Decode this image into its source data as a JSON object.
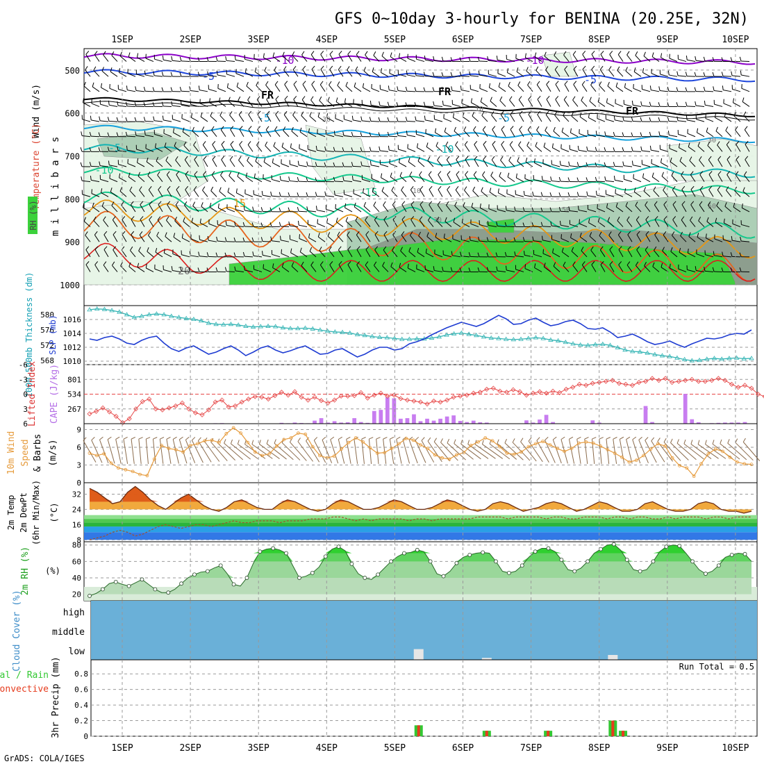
{
  "title": "GFS 0~10day 3-hourly for BENINA (20.25E, 32N)",
  "credit": "GrADS: COLA/IGES",
  "colors": {
    "wind_dark": "#8a00c8",
    "wind_blue": "#1e46dc",
    "wind_cyan": "#14a0dc",
    "freeze": "#000000",
    "teal": "#14b4b4",
    "green_line": "#14c88c",
    "orange": "#e69614",
    "dark_orange": "#e6641e",
    "red": "#dc1e1e",
    "rh_light": "#e6f5e6",
    "rh_mid": "#aacdb4",
    "rh_dark": "#8c9c8c",
    "rh_green": "#3cd23c",
    "slp_line": "#1e3cd2",
    "thick_line": "#32b4b4",
    "cape_bar": "#c87df0",
    "li_line": "#e64646",
    "wind10": "#e69b3c",
    "cloud_low": "#6ab0d8",
    "precip_total": "#32c832",
    "precip_conv": "#e63c1e",
    "temp_fill": "#f0a028",
    "temp_dark": "#dc5014",
    "dew_green": "#50c850",
    "dew_blue": "#3278e6",
    "rh2m": "#1ed21e"
  },
  "chart_data": [
    {
      "type": "heatmap",
      "name": "upper_air_cross_section",
      "title": "RH (%), Temperature (°C), Wind (m/s)",
      "ylabel": "m i l l i b a r s",
      "yaxis_label_rh": "RH (%)",
      "yaxis_label_temp": "Temperature (°C)",
      "yaxis_label_wind": "Wind (m/s)",
      "x_ticks": [
        "1SEP",
        "2SEP",
        "3SEP",
        "4SEP",
        "5SEP",
        "6SEP",
        "7SEP",
        "8SEP",
        "9SEP",
        "10SEP"
      ],
      "y_ticks": [
        "500",
        "600",
        "700",
        "800",
        "900",
        "1000"
      ],
      "ylim": [
        450,
        1000
      ],
      "contour_labels": [
        "-10",
        "-10",
        "-5",
        "-5",
        "-5",
        "FR",
        "FR",
        "FR",
        "-5",
        "-5",
        "-10",
        "-10",
        "-15",
        "15",
        "20",
        "10",
        "30",
        "30",
        "50",
        "50",
        "10",
        "30"
      ]
    },
    {
      "type": "line",
      "name": "slp_thickness",
      "ylabel_left": "1000-500mb Thickness (dm)",
      "ylabel_right": "SLP (mb)",
      "thickness_ticks": [
        "580",
        "576",
        "572",
        "568"
      ],
      "slp_ticks": [
        "1016",
        "1014",
        "1012",
        "1010"
      ],
      "thickness_ylim": [
        567.5,
        582
      ],
      "slp_ylim": [
        1009.8,
        1017.8
      ],
      "slp": [
        1013.2,
        1013.0,
        1013.4,
        1013.6,
        1013.2,
        1012.6,
        1012.4,
        1013.0,
        1013.4,
        1013.6,
        1012.6,
        1011.8,
        1011.4,
        1011.9,
        1012.2,
        1011.6,
        1011.0,
        1011.3,
        1011.8,
        1012.2,
        1011.6,
        1010.8,
        1011.3,
        1011.9,
        1012.2,
        1011.6,
        1011.2,
        1011.5,
        1011.9,
        1012.2,
        1011.6,
        1011.0,
        1011.1,
        1011.6,
        1011.8,
        1011.2,
        1010.6,
        1011.0,
        1011.6,
        1012.0,
        1012.0,
        1011.6,
        1011.8,
        1012.5,
        1012.8,
        1013.2,
        1013.8,
        1014.3,
        1014.8,
        1015.2,
        1015.6,
        1015.3,
        1015.0,
        1015.4,
        1016.0,
        1016.6,
        1016.1,
        1015.3,
        1015.4,
        1015.9,
        1016.2,
        1015.6,
        1015.1,
        1015.3,
        1015.7,
        1015.9,
        1015.4,
        1014.7,
        1014.6,
        1014.8,
        1014.2,
        1013.4,
        1013.6,
        1013.9,
        1013.4,
        1012.8,
        1012.4,
        1012.6,
        1012.9,
        1012.4,
        1012.0,
        1012.5,
        1012.9,
        1013.3,
        1013.2,
        1013.4,
        1013.8,
        1014.0,
        1013.9,
        1014.5
      ],
      "thickness": [
        581.3,
        581.5,
        581.4,
        581.1,
        580.7,
        580.0,
        579.3,
        579.6,
        580.0,
        580.2,
        580.0,
        579.6,
        579.3,
        579.0,
        578.8,
        578.4,
        577.8,
        577.5,
        577.4,
        577.5,
        577.3,
        577.0,
        576.8,
        576.9,
        577.0,
        576.9,
        576.6,
        576.4,
        576.4,
        576.5,
        576.3,
        576.0,
        575.7,
        575.5,
        575.4,
        575.2,
        574.8,
        574.6,
        574.3,
        574.1,
        574.0,
        573.8,
        573.6,
        573.6,
        573.7,
        573.7,
        573.9,
        574.2,
        574.7,
        575.0,
        575.2,
        574.9,
        574.6,
        574.2,
        573.9,
        573.8,
        573.6,
        573.5,
        573.6,
        573.8,
        574.0,
        573.8,
        573.4,
        573.2,
        572.8,
        572.4,
        572.1,
        572.0,
        572.2,
        572.3,
        572.0,
        571.4,
        570.8,
        570.4,
        570.3,
        570.0,
        569.6,
        569.3,
        569.1,
        568.7,
        568.3,
        568.0,
        568.1,
        568.4,
        568.6,
        568.4,
        568.6,
        568.7,
        568.5,
        568.6
      ]
    },
    {
      "type": "bar",
      "name": "cape_lifted_index",
      "ylabel_left": "Lifted Index",
      "ylabel_right": "CAPE (J/kg)",
      "li_ticks": [
        "-6",
        "-3",
        "0",
        "3",
        "6"
      ],
      "cape_ticks": [
        "801",
        "534",
        "267"
      ],
      "cape_ylim": [
        0,
        1070
      ],
      "li_ylim": [
        6,
        -6
      ],
      "cape": [
        0,
        0,
        0,
        0,
        0,
        0,
        0,
        0,
        0,
        0,
        0,
        0,
        0,
        0,
        0,
        0,
        0,
        0,
        0,
        8,
        10,
        5,
        5,
        0,
        0,
        0,
        0,
        0,
        0,
        15,
        8,
        20,
        12,
        8,
        55,
        100,
        20,
        45,
        20,
        25,
        100,
        30,
        15,
        230,
        250,
        480,
        460,
        90,
        100,
        170,
        45,
        90,
        55,
        90,
        130,
        150,
        50,
        30,
        55,
        25,
        20,
        0,
        0,
        0,
        0,
        0,
        60,
        20,
        75,
        160,
        30,
        0,
        0,
        0,
        0,
        0,
        60,
        20,
        5,
        0,
        0,
        0,
        0,
        0,
        320,
        30,
        0,
        0,
        0,
        0,
        540,
        80,
        25,
        0,
        10,
        15,
        20,
        20,
        20,
        30,
        0
      ],
      "li": [
        4.0,
        3.5,
        2.8,
        3.6,
        4.5,
        5.8,
        5.0,
        3.0,
        1.5,
        1.0,
        3.0,
        3.2,
        2.8,
        2.4,
        1.8,
        3.0,
        3.8,
        4.2,
        3.2,
        1.6,
        1.2,
        2.6,
        2.4,
        1.6,
        1.0,
        0.5,
        0.6,
        1.0,
        0.3,
        -0.4,
        0.2,
        -0.5,
        0.6,
        1.2,
        0.6,
        1.3,
        1.8,
        1.2,
        0.4,
        0.4,
        0.3,
        -0.3,
        0.8,
        0.2,
        -0.2,
        0.4,
        0.2,
        0.9,
        1.2,
        1.4,
        1.6,
        2.0,
        1.4,
        1.6,
        1.2,
        0.6,
        0.4,
        0.2,
        -0.2,
        -0.4,
        -1.0,
        -1.2,
        -0.6,
        -0.4,
        -0.9,
        -0.5,
        0.2,
        -0.2,
        -0.5,
        -0.2,
        -0.6,
        -0.3,
        -1.0,
        -1.4,
        -2.0,
        -1.8,
        -2.2,
        -2.4,
        -2.6,
        -2.8,
        -2.2,
        -2.0,
        -1.8,
        -2.4,
        -2.6,
        -3.2,
        -2.8,
        -3.2,
        -2.4,
        -2.6,
        -2.8,
        -3.0,
        -2.6,
        -2.6,
        -2.8,
        -3.2,
        -2.8,
        -2.0,
        -1.4,
        -1.8,
        -1.2,
        0.0,
        0.5
      ]
    },
    {
      "type": "line",
      "name": "wind_10m",
      "ylabel": "10m Wind Speed & Barbs (m/s)",
      "ylabel_parts": [
        "10m Wind",
        "Speed",
        "& Barbs",
        "(m/s)"
      ],
      "ticks": [
        "9",
        "6",
        "3",
        "0"
      ],
      "ylim": [
        0,
        10
      ],
      "values": [
        5.0,
        4.6,
        4.9,
        3.3,
        2.5,
        2.2,
        1.9,
        1.4,
        1.2,
        4.0,
        6.3,
        5.8,
        5.6,
        5.2,
        6.3,
        6.6,
        7.1,
        7.2,
        6.8,
        8.3,
        9.3,
        8.4,
        6.8,
        5.2,
        4.6,
        4.9,
        6.2,
        7.3,
        7.6,
        8.4,
        8.2,
        6.1,
        4.6,
        4.2,
        4.5,
        5.7,
        6.8,
        7.6,
        6.9,
        5.9,
        5.0,
        5.1,
        5.8,
        6.6,
        7.5,
        7.2,
        6.4,
        5.8,
        4.7,
        4.2,
        4.0,
        4.7,
        5.1,
        6.3,
        6.9,
        7.6,
        7.1,
        6.1,
        5.0,
        4.8,
        5.2,
        6.1,
        6.6,
        7.0,
        6.4,
        5.8,
        5.3,
        5.8,
        6.7,
        6.9,
        6.7,
        6.2,
        5.6,
        5.0,
        4.3,
        3.5,
        3.8,
        4.6,
        5.7,
        6.6,
        6.2,
        4.2,
        2.9,
        2.5,
        1.1,
        3.2,
        4.9,
        5.7,
        5.3,
        4.3,
        3.5,
        3.2,
        3.1
      ]
    },
    {
      "type": "area",
      "name": "temp_2m",
      "ylabel": "2m Temp 2m DewPt (6hr Min/Max) (°C)",
      "ylabel_parts": [
        "2m Temp",
        "2m DewPt",
        "(6hr Min/Max)",
        "(°C)"
      ],
      "ticks": [
        "32",
        "24",
        "16",
        "8"
      ],
      "ylim": [
        7,
        38
      ],
      "temp": [
        35,
        33,
        30,
        27,
        28,
        33,
        36,
        33,
        29,
        26,
        24,
        27,
        30,
        32,
        29,
        26,
        24,
        23,
        25,
        28,
        29,
        27,
        25,
        24,
        24,
        27,
        29,
        28,
        26,
        24,
        23,
        24,
        27,
        29,
        28,
        26,
        24,
        24,
        25,
        27,
        29,
        28,
        26,
        24,
        24,
        25,
        27,
        29,
        28,
        26,
        24,
        23,
        24,
        27,
        28,
        27,
        25,
        23,
        24,
        25,
        27,
        28,
        27,
        25,
        23,
        24,
        26,
        28,
        27,
        25,
        23,
        23,
        24,
        27,
        28,
        26,
        24,
        23,
        23,
        24,
        27,
        28,
        27,
        24,
        23,
        23,
        22,
        23
      ],
      "dewpt": [
        8,
        9,
        10,
        12,
        13,
        12,
        10,
        11,
        13,
        15,
        16,
        15,
        14,
        15,
        16,
        16,
        15,
        16,
        17,
        18,
        17,
        17,
        18,
        18,
        18,
        17,
        18,
        18,
        18,
        19,
        19,
        19,
        20,
        20,
        19,
        18,
        19,
        18,
        19,
        19,
        19,
        19,
        18,
        19,
        19,
        18,
        19,
        19,
        19,
        19,
        19,
        20,
        20,
        20,
        20,
        19,
        20,
        20,
        20,
        20,
        19,
        20,
        20,
        19,
        19,
        20,
        20,
        20,
        19,
        20,
        20,
        19,
        20,
        20,
        19,
        19,
        20,
        19,
        20,
        20,
        20,
        19,
        20,
        20,
        19,
        20,
        20,
        20
      ]
    },
    {
      "type": "area",
      "name": "rh_2m",
      "ylabel": "2m RH (%)",
      "ticks": [
        "80",
        "60",
        "40",
        "20"
      ],
      "ylim": [
        12,
        84
      ],
      "values": [
        18,
        21,
        26,
        33,
        35,
        32,
        30,
        34,
        38,
        32,
        26,
        22,
        22,
        26,
        33,
        40,
        44,
        47,
        48,
        52,
        55,
        45,
        32,
        30,
        40,
        58,
        72,
        75,
        76,
        74,
        70,
        55,
        40,
        42,
        46,
        53,
        66,
        75,
        78,
        73,
        57,
        45,
        40,
        38,
        44,
        52,
        60,
        66,
        70,
        71,
        74,
        72,
        60,
        45,
        42,
        48,
        58,
        65,
        68,
        70,
        71,
        70,
        60,
        48,
        46,
        48,
        55,
        65,
        72,
        76,
        76,
        72,
        62,
        50,
        48,
        52,
        60,
        70,
        75,
        80,
        81,
        74,
        62,
        50,
        48,
        50,
        60,
        72,
        78,
        80,
        79,
        70,
        60,
        50,
        45,
        48,
        55,
        65,
        68,
        70,
        69,
        60
      ]
    },
    {
      "type": "bar",
      "name": "cloud_cover",
      "ylabel": "Cloud Cover (%)",
      "levels": [
        "high",
        "middle",
        "low"
      ],
      "low_cloud_notes": [
        {
          "day": 5.35,
          "low_pct": 55
        },
        {
          "day": 6.35,
          "low_pct": 10
        },
        {
          "day": 8.2,
          "low_pct": 25
        }
      ]
    },
    {
      "type": "bar",
      "name": "precip_3hr",
      "ylabel": "3hr Precip (mm)",
      "legend": [
        "Total / Rain",
        "Convective"
      ],
      "run_total_label": "Run Total = 0.5",
      "ticks": [
        "0.8",
        "0.6",
        "0.4",
        "0.2",
        "0"
      ],
      "ylim": [
        0,
        0.98
      ],
      "bars": [
        {
          "day": 5.35,
          "total": 0.14,
          "convective": 0.14
        },
        {
          "day": 6.35,
          "total": 0.07,
          "convective": 0.07
        },
        {
          "day": 7.25,
          "total": 0.07,
          "convective": 0.07
        },
        {
          "day": 8.2,
          "total": 0.2,
          "convective": 0.2
        },
        {
          "day": 8.35,
          "total": 0.07,
          "convective": 0.07
        }
      ]
    }
  ]
}
